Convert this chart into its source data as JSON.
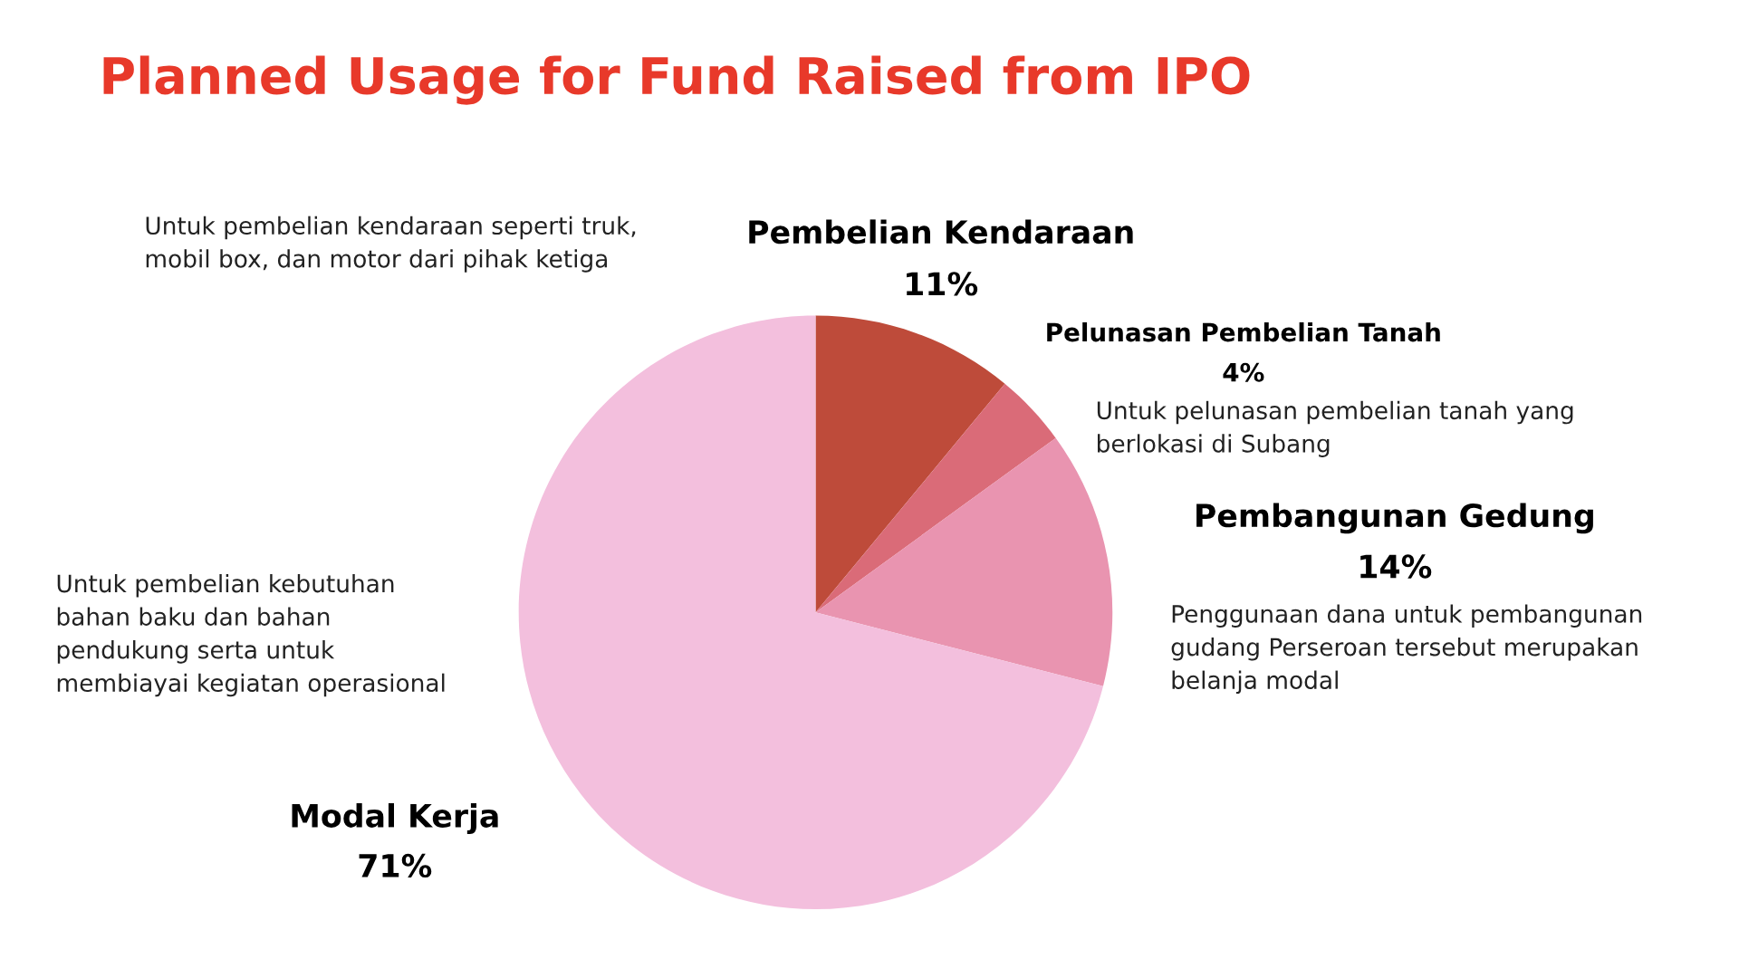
{
  "chart_data": {
    "type": "pie",
    "title": "Planned Usage for Fund Raised from IPO",
    "categories": [
      "Pembelian Kendaraan",
      "Pelunasan Pembelian Tanah",
      "Pembangunan Gedung",
      "Modal Kerja"
    ],
    "values": [
      11,
      4,
      14,
      71
    ],
    "value_labels": [
      "11%",
      "4%",
      "14%",
      "71%"
    ],
    "colors": [
      "#be4b3a",
      "#da6b78",
      "#e994b0",
      "#f3bfdd"
    ],
    "annotations": [
      "Untuk pembelian kendaraan seperti truk,\nmobil box, dan motor dari pihak ketiga",
      "Untuk pelunasan pembelian tanah yang\nberlokasi di Subang",
      "Penggunaan dana untuk pembangunan\ngudang Perseroan tersebut merupakan\nbelanja modal",
      "Untuk pembelian kebutuhan\nbahan baku dan bahan\npendukung serta untuk\nmembiayai kegiatan operasional"
    ]
  }
}
